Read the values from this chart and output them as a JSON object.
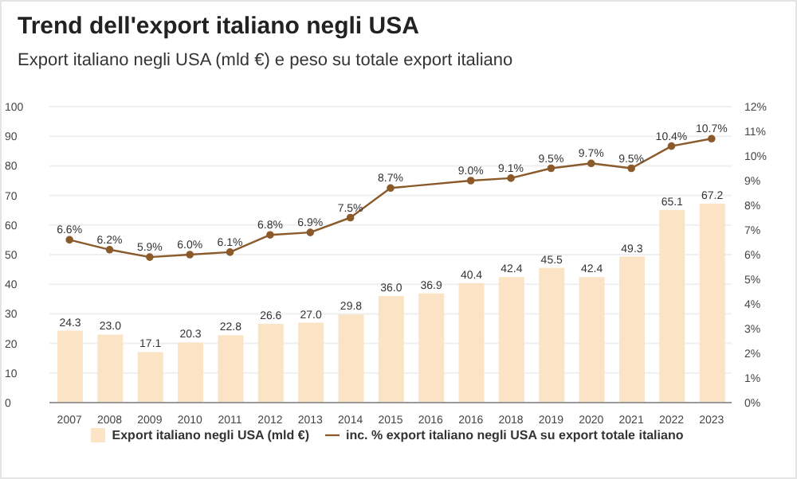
{
  "chart_data": {
    "type": "bar",
    "title": "Trend dell'export italiano negli USA",
    "subtitle": "Export italiano negli USA (mld €) e peso su totale export italiano",
    "categories": [
      "2007",
      "2008",
      "2009",
      "2010",
      "2011",
      "2012",
      "2013",
      "2014",
      "2015",
      "2016",
      "2016",
      "2018",
      "2019",
      "2020",
      "2021",
      "2022",
      "2023"
    ],
    "series": [
      {
        "name": "Export italiano negli USA (mld €)",
        "color": "#fbe4c6",
        "values": [
          24.3,
          23.0,
          17.1,
          20.3,
          22.8,
          26.6,
          27.0,
          29.8,
          36.0,
          36.9,
          40.4,
          42.4,
          45.5,
          42.4,
          49.3,
          65.1,
          67.2
        ],
        "value_labels": [
          "24.3",
          "23.0",
          "17.1",
          "20.3",
          "22.8",
          "26.6",
          "27.0",
          "29.8",
          "36.0",
          "36.9",
          "40.4",
          "42.4",
          "45.5",
          "42.4",
          "49.3",
          "65.1",
          "67.2"
        ]
      },
      {
        "name": "inc. % export italiano negli USA su export totale italiano",
        "type": "line",
        "axis": "y2",
        "color": "#8b5a2b",
        "values": [
          6.6,
          6.2,
          5.9,
          6.0,
          6.1,
          6.8,
          6.9,
          7.5,
          8.7,
          null,
          9.0,
          9.1,
          9.5,
          9.7,
          9.5,
          10.4,
          10.7
        ],
        "value_labels": [
          "6.6%",
          "6.2%",
          "5.9%",
          "6.0%",
          "6.1%",
          "6.8%",
          "6.9%",
          "7.5%",
          "8.7%",
          null,
          "9.0%",
          "9.1%",
          "9.5%",
          "9.7%",
          "9.5%",
          "10.4%",
          "10.7%"
        ]
      }
    ],
    "ylim": [
      0,
      100
    ],
    "yticks": [
      0,
      10,
      20,
      30,
      40,
      50,
      60,
      70,
      80,
      90,
      100
    ],
    "y2lim": [
      0,
      12
    ],
    "y2ticks": [
      {
        "value": 0,
        "label": "0%"
      },
      {
        "value": 1,
        "label": "1%"
      },
      {
        "value": 2,
        "label": "2%"
      },
      {
        "value": 3,
        "label": "3%"
      },
      {
        "value": 4,
        "label": "4%"
      },
      {
        "value": 5,
        "label": "5%"
      },
      {
        "value": 6,
        "label": "6%"
      },
      {
        "value": 7,
        "label": "7%"
      },
      {
        "value": 8,
        "label": "8%"
      },
      {
        "value": 9,
        "label": "9%"
      },
      {
        "value": 10,
        "label": "10%"
      },
      {
        "value": 11,
        "label": "11%"
      },
      {
        "value": 12,
        "label": "12%"
      }
    ],
    "grid": "y",
    "legend": "bottom",
    "marker": "circle",
    "data_labels": true
  }
}
